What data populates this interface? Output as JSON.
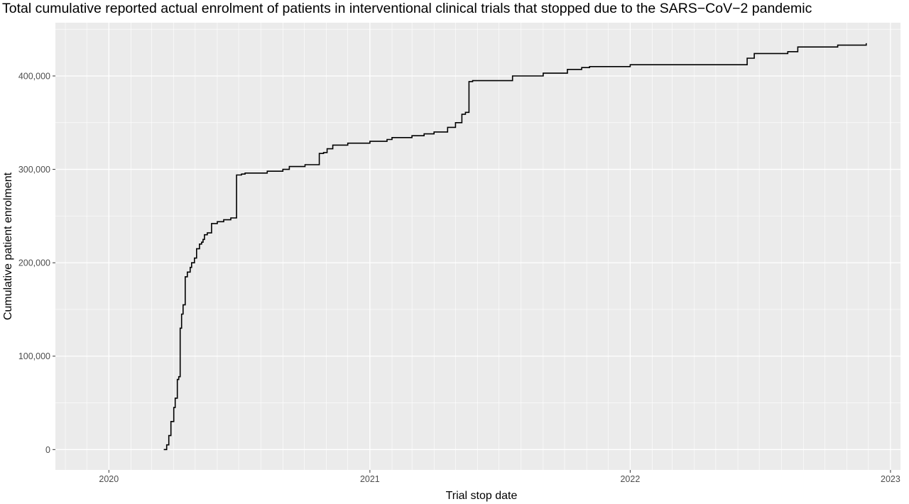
{
  "chart_data": {
    "type": "line",
    "line_style": "step",
    "title": "Total cumulative reported actual enrolment of patients in interventional clinical trials that stopped due to the SARS−CoV−2 pandemic",
    "xlabel": "Trial stop date",
    "ylabel": "Cumulative patient enrolment",
    "x_tick_labels": [
      "2020",
      "2021",
      "2022",
      "2023"
    ],
    "y_tick_labels": [
      "0",
      "100,000",
      "200,000",
      "300,000",
      "400,000"
    ],
    "y_ticks": [
      0,
      100000,
      200000,
      300000,
      400000
    ],
    "xlim": [
      "2019-10-18",
      "2023-01-15"
    ],
    "ylim": [
      -21800,
      457000
    ],
    "grid": true,
    "background": "#ebebeb",
    "grid_color": "#ffffff",
    "line_color": "#000000",
    "series": [
      {
        "x": [
          "2020-03-18",
          "2020-03-22",
          "2020-03-25",
          "2020-03-28",
          "2020-04-01",
          "2020-04-03",
          "2020-04-06",
          "2020-04-08",
          "2020-04-10",
          "2020-04-12",
          "2020-04-14",
          "2020-04-17",
          "2020-04-20",
          "2020-04-24",
          "2020-04-26",
          "2020-04-30",
          "2020-05-03",
          "2020-05-07",
          "2020-05-10",
          "2020-05-12",
          "2020-05-14",
          "2020-05-18",
          "2020-05-24",
          "2020-06-01",
          "2020-06-10",
          "2020-06-20",
          "2020-06-28",
          "2020-07-05",
          "2020-07-10",
          "2020-08-10",
          "2020-09-01",
          "2020-09-10",
          "2020-10-02",
          "2020-10-22",
          "2020-10-28",
          "2020-11-02",
          "2020-11-10",
          "2020-12-01",
          "2021-01-01",
          "2021-01-25",
          "2021-02-01",
          "2021-03-01",
          "2021-03-18",
          "2021-04-01",
          "2021-04-20",
          "2021-05-01",
          "2021-05-10",
          "2021-05-15",
          "2021-05-20",
          "2021-05-25",
          "2021-07-20",
          "2021-09-01",
          "2021-10-05",
          "2021-10-25",
          "2021-11-05",
          "2022-01-01",
          "2022-06-14",
          "2022-06-24",
          "2022-08-10",
          "2022-08-24",
          "2022-10-19",
          "2022-11-28"
        ],
        "y": [
          0,
          5000,
          15000,
          30000,
          45000,
          55000,
          75000,
          78000,
          130000,
          145000,
          155000,
          185000,
          190000,
          195000,
          200000,
          205000,
          215000,
          220000,
          222000,
          225000,
          230000,
          232000,
          242000,
          244000,
          246000,
          248000,
          294000,
          295000,
          296000,
          298000,
          300000,
          303000,
          305000,
          317000,
          318000,
          322000,
          326000,
          328000,
          330000,
          332000,
          334000,
          336000,
          338000,
          340000,
          345000,
          350000,
          359000,
          361000,
          394000,
          395000,
          400000,
          403000,
          407000,
          409000,
          410000,
          412000,
          419000,
          424000,
          426000,
          431000,
          433000,
          435000
        ]
      }
    ]
  }
}
